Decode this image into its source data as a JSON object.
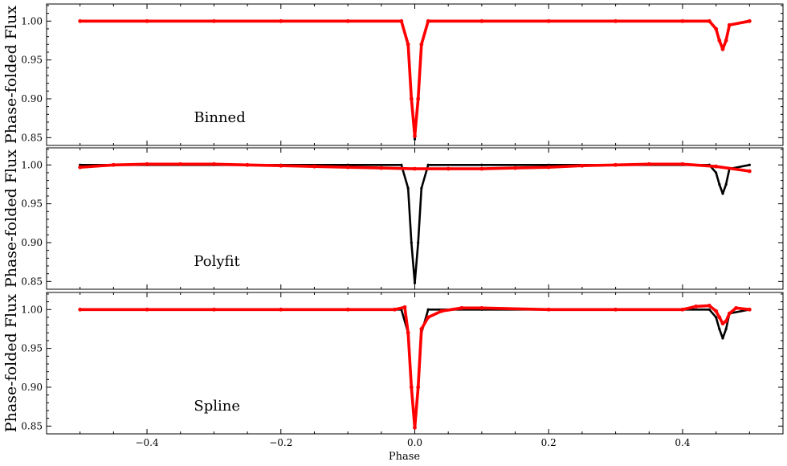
{
  "chart_data": [
    {
      "type": "scatter",
      "panel": "binned",
      "annotation": "Binned",
      "ylabel": "Phase-folded Flux",
      "xlim": [
        -0.55,
        0.55
      ],
      "ylim": [
        0.84,
        1.022
      ],
      "yticks": [
        0.85,
        0.9,
        0.95,
        1.0
      ],
      "ytick_labels": [
        "0.85",
        "0.90",
        "0.95",
        "1.00"
      ],
      "series": [
        {
          "color": "#000000",
          "x": [
            -0.5,
            -0.4,
            -0.3,
            -0.2,
            -0.1,
            -0.02,
            -0.01,
            -0.005,
            0.0,
            0.005,
            0.01,
            0.02,
            0.1,
            0.2,
            0.3,
            0.4,
            0.44,
            0.45,
            0.455,
            0.46,
            0.465,
            0.47,
            0.5
          ],
          "y": [
            1.0,
            1.0,
            1.0,
            1.0,
            1.0,
            1.0,
            0.97,
            0.9,
            0.848,
            0.9,
            0.97,
            1.0,
            1.0,
            1.0,
            1.0,
            1.0,
            1.0,
            0.99,
            0.975,
            0.963,
            0.975,
            0.995,
            1.0
          ]
        },
        {
          "color": "#ff0000",
          "x": [
            -0.5,
            -0.4,
            -0.3,
            -0.2,
            -0.1,
            -0.02,
            -0.01,
            -0.005,
            0.0,
            0.005,
            0.01,
            0.02,
            0.1,
            0.2,
            0.3,
            0.4,
            0.44,
            0.45,
            0.455,
            0.46,
            0.465,
            0.47,
            0.5
          ],
          "y": [
            1.0,
            1.0,
            1.0,
            1.0,
            1.0,
            1.0,
            0.97,
            0.9,
            0.852,
            0.9,
            0.97,
            1.0,
            1.0,
            1.0,
            1.0,
            1.0,
            1.0,
            0.99,
            0.975,
            0.964,
            0.975,
            0.995,
            1.0
          ]
        }
      ]
    },
    {
      "type": "scatter",
      "panel": "polyfit",
      "annotation": "Polyfit",
      "ylabel": "Phase-folded Flux",
      "xlim": [
        -0.55,
        0.55
      ],
      "ylim": [
        0.84,
        1.022
      ],
      "yticks": [
        0.85,
        0.9,
        0.95,
        1.0
      ],
      "ytick_labels": [
        "0.85",
        "0.90",
        "0.95",
        "1.00"
      ],
      "series": [
        {
          "color": "#000000",
          "x": [
            -0.5,
            -0.4,
            -0.3,
            -0.2,
            -0.1,
            -0.02,
            -0.01,
            -0.005,
            0.0,
            0.005,
            0.01,
            0.02,
            0.1,
            0.2,
            0.3,
            0.4,
            0.44,
            0.45,
            0.455,
            0.46,
            0.465,
            0.47,
            0.5
          ],
          "y": [
            1.0,
            1.0,
            1.0,
            1.0,
            1.0,
            1.0,
            0.97,
            0.9,
            0.848,
            0.9,
            0.97,
            1.0,
            1.0,
            1.0,
            1.0,
            1.0,
            1.0,
            0.99,
            0.975,
            0.963,
            0.975,
            0.995,
            1.0
          ]
        },
        {
          "color": "#ff0000",
          "x": [
            -0.5,
            -0.45,
            -0.4,
            -0.35,
            -0.3,
            -0.25,
            -0.2,
            -0.15,
            -0.1,
            -0.05,
            0.0,
            0.05,
            0.1,
            0.15,
            0.2,
            0.25,
            0.3,
            0.35,
            0.4,
            0.45,
            0.5
          ],
          "y": [
            0.997,
            1.0,
            1.001,
            1.001,
            1.001,
            1.0,
            0.999,
            0.998,
            0.997,
            0.996,
            0.995,
            0.995,
            0.995,
            0.996,
            0.997,
            0.999,
            1.0,
            1.001,
            1.001,
            0.998,
            0.992
          ]
        }
      ]
    },
    {
      "type": "scatter",
      "panel": "spline",
      "annotation": "Spline",
      "ylabel": "Phase-folded Flux",
      "xlabel": "Phase",
      "xlim": [
        -0.55,
        0.55
      ],
      "ylim": [
        0.84,
        1.022
      ],
      "xticks": [
        -0.4,
        -0.2,
        0.0,
        0.2,
        0.4
      ],
      "xtick_labels": [
        "−0.4",
        "−0.2",
        "0.0",
        "0.2",
        "0.4"
      ],
      "yticks": [
        0.85,
        0.9,
        0.95,
        1.0
      ],
      "ytick_labels": [
        "0.85",
        "0.90",
        "0.95",
        "1.00"
      ],
      "series": [
        {
          "color": "#000000",
          "x": [
            -0.5,
            -0.4,
            -0.3,
            -0.2,
            -0.1,
            -0.02,
            -0.01,
            -0.005,
            0.0,
            0.005,
            0.01,
            0.02,
            0.1,
            0.2,
            0.3,
            0.4,
            0.44,
            0.45,
            0.455,
            0.46,
            0.465,
            0.47,
            0.5
          ],
          "y": [
            1.0,
            1.0,
            1.0,
            1.0,
            1.0,
            1.0,
            0.97,
            0.9,
            0.848,
            0.9,
            0.97,
            1.0,
            1.0,
            1.0,
            1.0,
            1.0,
            1.0,
            0.99,
            0.975,
            0.963,
            0.975,
            0.995,
            1.0
          ]
        },
        {
          "color": "#ff0000",
          "x": [
            -0.5,
            -0.4,
            -0.3,
            -0.2,
            -0.1,
            -0.03,
            -0.015,
            -0.01,
            -0.005,
            0.0,
            0.005,
            0.01,
            0.02,
            0.04,
            0.07,
            0.1,
            0.2,
            0.3,
            0.4,
            0.42,
            0.44,
            0.45,
            0.455,
            0.46,
            0.465,
            0.47,
            0.48,
            0.5
          ],
          "y": [
            1.0,
            1.0,
            1.0,
            1.0,
            1.0,
            1.0,
            1.003,
            0.97,
            0.9,
            0.848,
            0.9,
            0.975,
            0.99,
            0.998,
            1.002,
            1.002,
            1.0,
            1.0,
            1.0,
            1.004,
            1.005,
            0.998,
            0.99,
            0.982,
            0.985,
            0.995,
            1.002,
            1.0
          ]
        }
      ]
    }
  ]
}
